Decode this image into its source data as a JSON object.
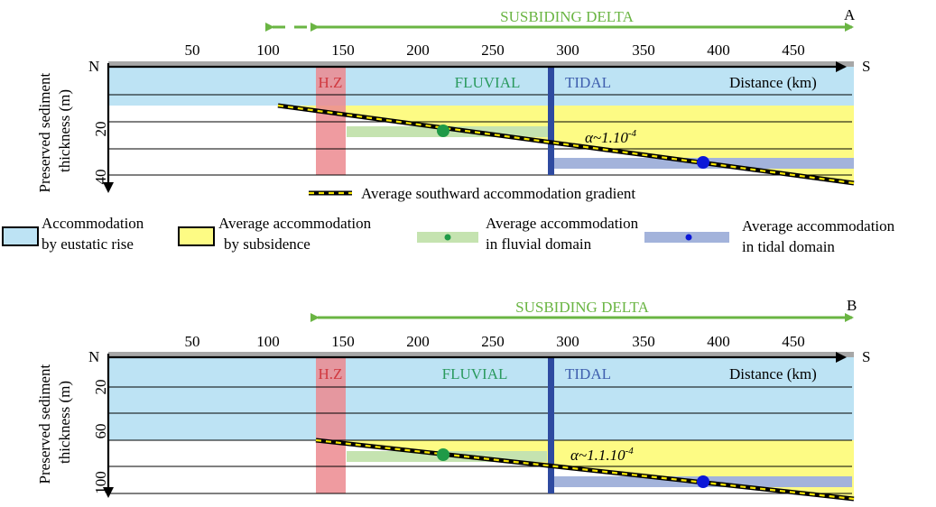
{
  "title": "SUSBIDING DELTA",
  "x_axis": {
    "ticks": [
      "50",
      "100",
      "150",
      "200",
      "250",
      "300",
      "350",
      "400",
      "450"
    ],
    "north": "N",
    "south": "S",
    "distance_label": "Distance (km)"
  },
  "y_axis_label": [
    "Preserved sediment",
    "thickness (m)"
  ],
  "zones": {
    "hz": "H.Z",
    "fluvial": "FLUVIAL",
    "tidal": "TIDAL"
  },
  "panel_a": {
    "letter": "A",
    "y_ticks": [
      "20",
      "40"
    ],
    "alpha_base": "α~1.10",
    "alpha_exp": "-4"
  },
  "panel_b": {
    "letter": "B",
    "y_ticks": [
      "20",
      "60",
      "100"
    ],
    "alpha_base": "α~1.1.10",
    "alpha_exp": "-4"
  },
  "gradient_label": "Average southward accommodation gradient",
  "legend": {
    "eustatic": [
      "Accommodation",
      "by eustatic rise"
    ],
    "subsidence": [
      "Average accommodation",
      "by subsidence"
    ],
    "fluvial": [
      "Average accommodation",
      "in fluvial domain"
    ],
    "tidal": [
      "Average accommodation",
      "in tidal domain"
    ]
  },
  "colors": {
    "eustatic": "#bde3f4",
    "subsidence": "#fdfb84",
    "hz": "#ec8a8f",
    "fluvial_bar": "#c5e3b0",
    "tidal_bar": "#a3b3db",
    "green": "#6ab543",
    "green_dot": "#1f9a47",
    "blue_dot": "#0b17d8",
    "tidal_line": "#2e4aa0",
    "zone_fluvial_text": "#2a9a5e",
    "zone_tidal_text": "#3f5fae",
    "hz_text": "#d0383f",
    "axis_gray": "#a7a7a7"
  }
}
